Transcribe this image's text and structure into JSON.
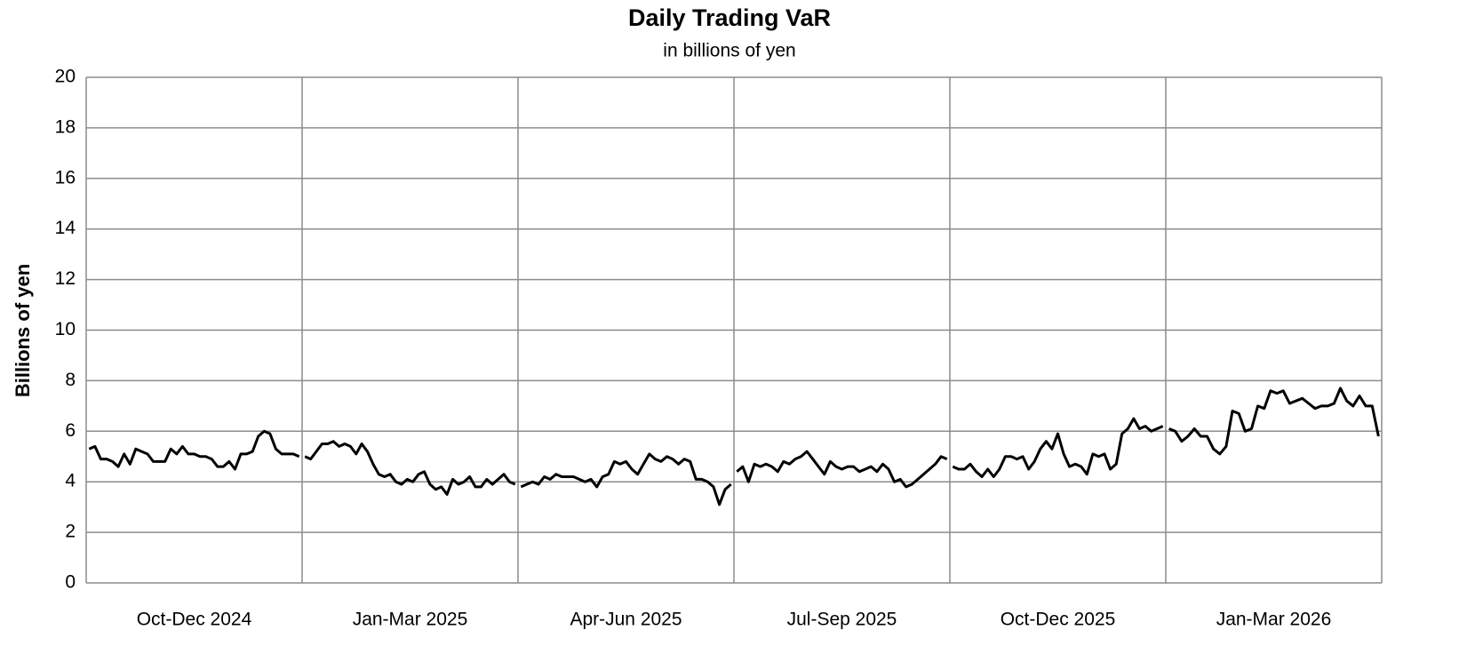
{
  "chart_data": {
    "type": "line",
    "title": "Daily Trading VaR",
    "subtitle": "in billions of yen",
    "y_label": "Billions of yen",
    "categories": [
      "Oct-Dec 2024",
      "Jan-Mar 2025",
      "Apr-Jun 2025",
      "Jul-Sep 2025",
      "Oct-Dec 2025",
      "Jan-Mar 2026"
    ],
    "values": [
      [
        5.3,
        5.4,
        4.9,
        4.9,
        4.8,
        4.6,
        5.1,
        4.7,
        5.3,
        5.2,
        5.1,
        4.8,
        4.8,
        4.8,
        5.3,
        5.1,
        5.4,
        5.1,
        5.1,
        5.0,
        5.0,
        4.9,
        4.6,
        4.6,
        4.8,
        4.5,
        5.1,
        5.1,
        5.2,
        5.8,
        6.0,
        5.9,
        5.3,
        5.1,
        5.1,
        5.1,
        5.0
      ],
      [
        5.0,
        4.9,
        5.2,
        5.5,
        5.5,
        5.6,
        5.4,
        5.5,
        5.4,
        5.1,
        5.5,
        5.2,
        4.7,
        4.3,
        4.2,
        4.3,
        4.0,
        3.9,
        4.1,
        4.0,
        4.3,
        4.4,
        3.9,
        3.7,
        3.8,
        3.5,
        4.1,
        3.9,
        4.0,
        4.2,
        3.8,
        3.8,
        4.1,
        3.9,
        4.1,
        4.3,
        4.0,
        3.9
      ],
      [
        3.8,
        3.9,
        4.0,
        3.9,
        4.2,
        4.1,
        4.3,
        4.2,
        4.2,
        4.2,
        4.1,
        4.0,
        4.1,
        3.8,
        4.2,
        4.3,
        4.8,
        4.7,
        4.8,
        4.5,
        4.3,
        4.7,
        5.1,
        4.9,
        4.8,
        5.0,
        4.9,
        4.7,
        4.9,
        4.8,
        4.1,
        4.1,
        4.0,
        3.8,
        3.1,
        3.7,
        3.9
      ],
      [
        4.4,
        4.6,
        4.0,
        4.7,
        4.6,
        4.7,
        4.6,
        4.4,
        4.8,
        4.7,
        4.9,
        5.0,
        5.2,
        4.9,
        4.6,
        4.3,
        4.8,
        4.6,
        4.5,
        4.6,
        4.6,
        4.4,
        4.5,
        4.6,
        4.4,
        4.7,
        4.5,
        4.0,
        4.1,
        3.8,
        3.9,
        4.1,
        4.3,
        4.5,
        4.7,
        5.0,
        4.9
      ],
      [
        4.6,
        4.5,
        4.5,
        4.7,
        4.4,
        4.2,
        4.5,
        4.2,
        4.5,
        5.0,
        5.0,
        4.9,
        5.0,
        4.5,
        4.8,
        5.3,
        5.6,
        5.3,
        5.9,
        5.1,
        4.6,
        4.7,
        4.6,
        4.3,
        5.1,
        5.0,
        5.1,
        4.5,
        4.7,
        5.9,
        6.1,
        6.5,
        6.1,
        6.2,
        6.0,
        6.1,
        6.2
      ],
      [
        6.1,
        6.0,
        5.6,
        5.8,
        6.1,
        5.8,
        5.8,
        5.3,
        5.1,
        5.4,
        6.8,
        6.7,
        6.0,
        6.1,
        7.0,
        6.9,
        7.6,
        7.5,
        7.6,
        7.1,
        7.2,
        7.3,
        7.1,
        6.9,
        7.0,
        7.0,
        7.1,
        7.7,
        7.2,
        7.0,
        7.4,
        7.0,
        7.0,
        5.8
      ]
    ],
    "color": "#000000",
    "ylim": [
      0,
      20
    ],
    "yticks": [
      0,
      2,
      4,
      6,
      8,
      10,
      12,
      14,
      16,
      18,
      20
    ],
    "grid": true
  }
}
